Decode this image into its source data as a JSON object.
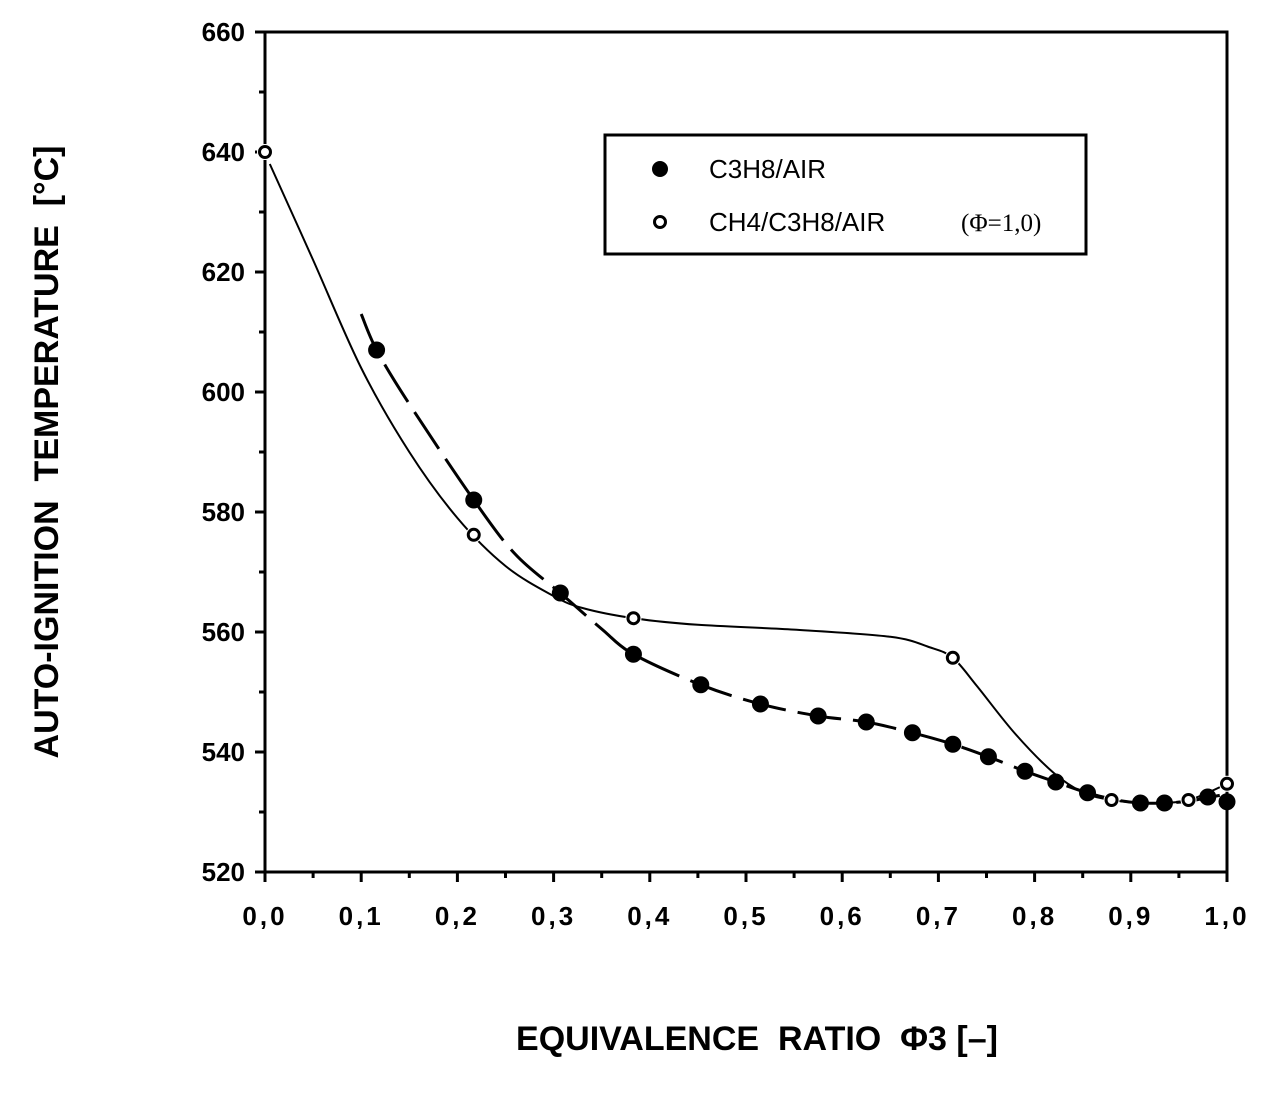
{
  "chart_data": {
    "type": "line",
    "xlabel": "EQUIVALENCE  RATIO  Φ3 [–]",
    "ylabel": "AUTO-IGNITION  TEMPERATURE  [°C]",
    "xlim": [
      0.0,
      1.0
    ],
    "ylim": [
      520,
      660
    ],
    "x_ticks": [
      0.0,
      0.1,
      0.2,
      0.3,
      0.4,
      0.5,
      0.6,
      0.7,
      0.8,
      0.9,
      1.0
    ],
    "x_tick_labels": [
      "0,0",
      "0,1",
      "0,2",
      "0,3",
      "0,4",
      "0,5",
      "0,6",
      "0,7",
      "0,8",
      "0,9",
      "1,0"
    ],
    "y_ticks": [
      520,
      540,
      560,
      580,
      600,
      620,
      640,
      660
    ],
    "y_tick_labels": [
      "520",
      "540",
      "560",
      "580",
      "600",
      "620",
      "640",
      "660"
    ],
    "grid": false,
    "legend_position": "top-right",
    "legend_note": "(Φ=1,0)",
    "series": [
      {
        "name": "C3H8/AIR",
        "marker": "filled-circle",
        "line_style": "dashed",
        "x": [
          0.116,
          0.217,
          0.307,
          0.383,
          0.453,
          0.515,
          0.575,
          0.625,
          0.673,
          0.715,
          0.752,
          0.79,
          0.822,
          0.855,
          0.91,
          0.935,
          0.98,
          1.0
        ],
        "y": [
          607,
          582,
          566.5,
          556.3,
          551.2,
          548,
          546,
          545,
          543.2,
          541.3,
          539.2,
          536.8,
          535,
          533.2,
          531.5,
          531.5,
          532.5,
          531.7
        ],
        "curve_x": [
          0.1,
          0.116,
          0.15,
          0.217,
          0.26,
          0.307,
          0.35,
          0.383,
          0.453,
          0.515,
          0.575,
          0.625,
          0.673,
          0.715,
          0.752,
          0.79,
          0.822,
          0.855,
          0.885,
          0.91,
          0.935,
          0.96,
          0.98,
          1.0
        ],
        "curve_y": [
          613,
          607,
          598,
          582,
          573,
          566.5,
          560.5,
          556.3,
          551.2,
          548,
          546,
          545,
          543.2,
          541.3,
          539.2,
          536.8,
          535,
          533.2,
          532,
          531.5,
          531.5,
          531.8,
          532.4,
          533
        ]
      },
      {
        "name": "CH4/C3H8/AIR",
        "marker": "open-circle",
        "line_style": "solid",
        "x": [
          0.0,
          0.217,
          0.383,
          0.715,
          0.88,
          0.96,
          1.0
        ],
        "y": [
          640,
          576.2,
          562.3,
          555.7,
          532,
          532,
          534.7
        ],
        "curve_x": [
          0.005,
          0.05,
          0.1,
          0.15,
          0.2,
          0.25,
          0.3,
          0.33,
          0.383,
          0.45,
          0.55,
          0.65,
          0.69,
          0.715,
          0.74,
          0.78,
          0.82,
          0.85,
          0.88,
          0.92,
          0.96,
          1.0
        ],
        "curve_y": [
          638,
          622,
          604,
          590,
          579,
          571,
          566,
          564,
          562.3,
          561.2,
          560.4,
          559.2,
          557.5,
          555.7,
          551,
          543,
          536.5,
          533.3,
          532,
          531.5,
          532,
          534.7
        ]
      }
    ]
  }
}
